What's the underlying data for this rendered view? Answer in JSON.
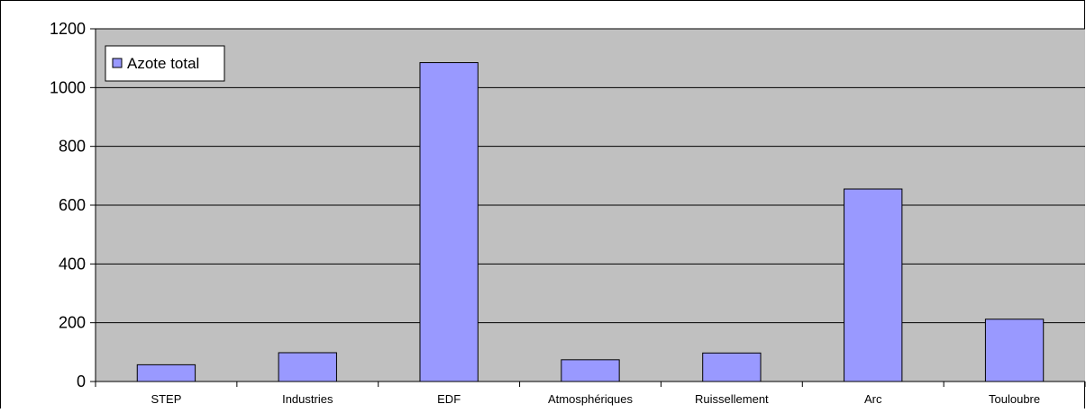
{
  "chart_data": {
    "type": "bar",
    "categories": [
      "STEP",
      "Industries",
      "EDF",
      "Atmosphériques",
      "Ruissellement",
      "Arc",
      "Touloubre"
    ],
    "series": [
      {
        "name": "Azote total",
        "values": [
          57,
          98,
          1085,
          74,
          97,
          655,
          212
        ],
        "color": "#9999ff"
      }
    ],
    "ylim": [
      0,
      1200
    ],
    "yticks": [
      0,
      200,
      400,
      600,
      800,
      1000,
      1200
    ],
    "title": "",
    "xlabel": "",
    "ylabel": "",
    "grid": "horizontal",
    "legend_position": "top-left",
    "plot_background": "#c0c0c0",
    "bar_border_color": "#000000"
  }
}
